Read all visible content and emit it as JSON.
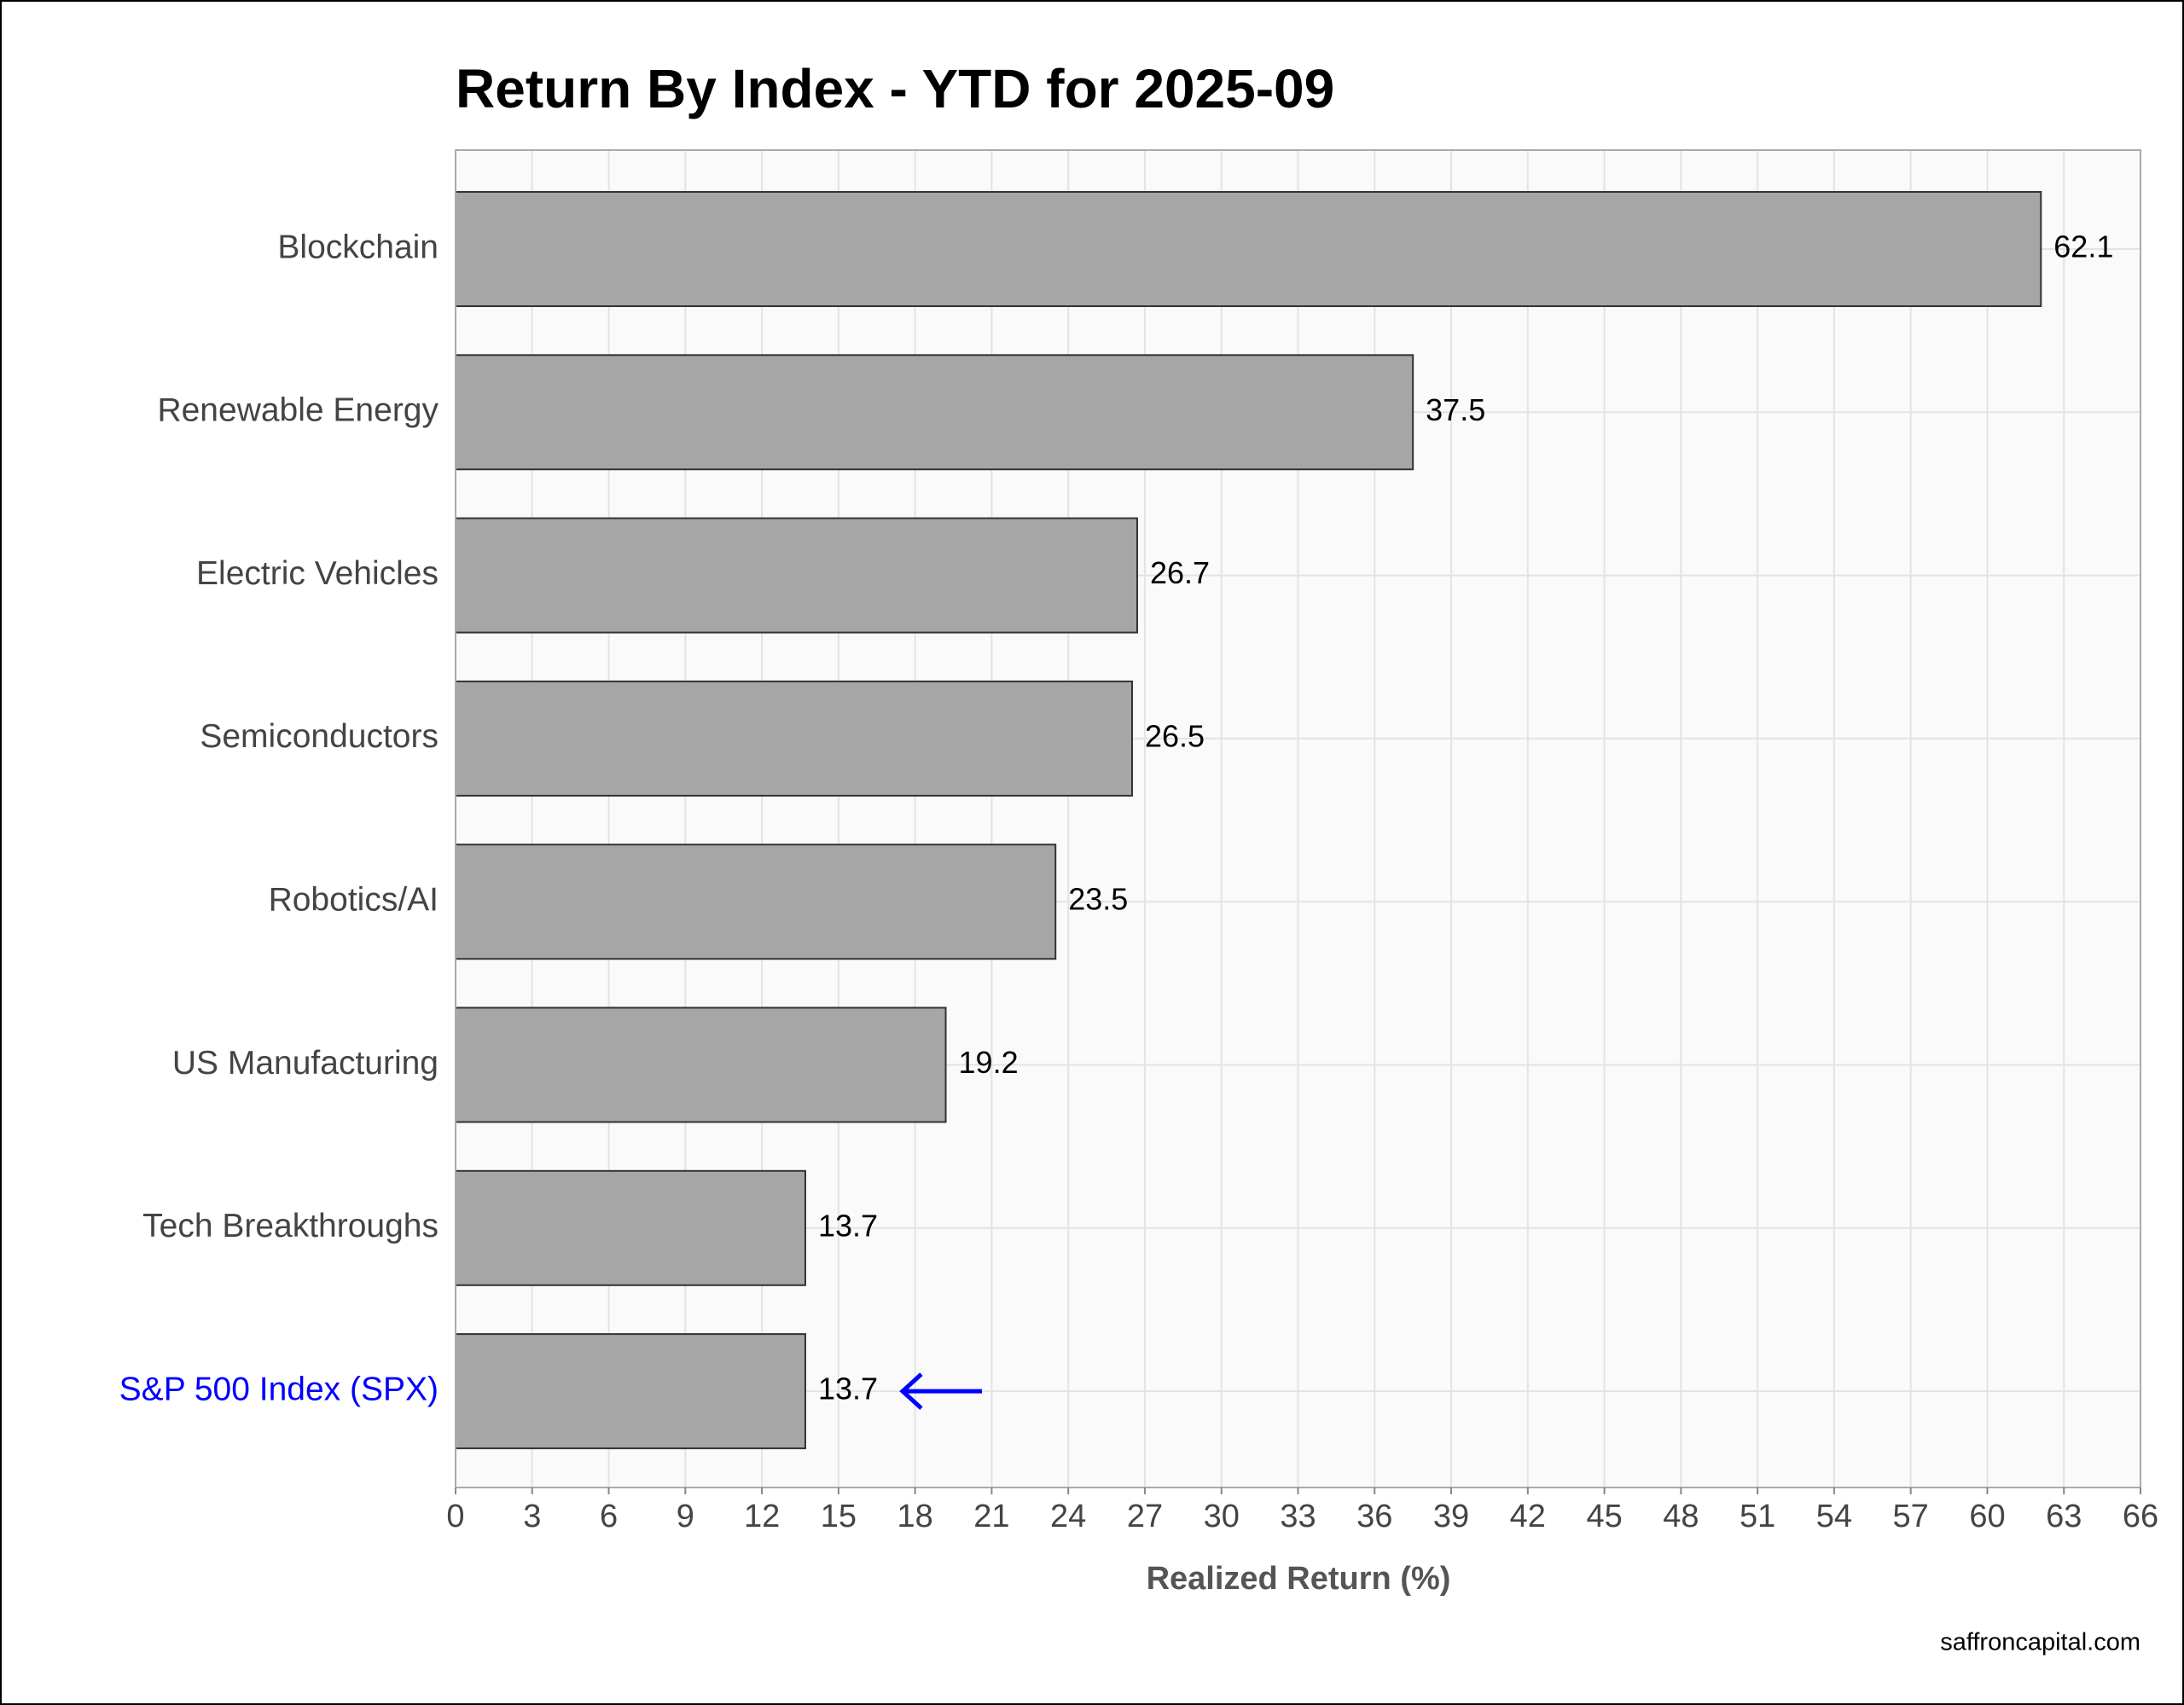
{
  "chart_data": {
    "type": "bar",
    "orientation": "horizontal",
    "title": "Return By Index - YTD for 2025-09",
    "x_label": "Realized Return (%)",
    "source": "saffroncapital.com",
    "categories": [
      "Blockchain",
      "Renewable Energy",
      "Electric Vehicles",
      "Semiconductors",
      "Robotics/AI",
      "US Manufacturing",
      "Tech Breakthroughs",
      "S&P 500 Index (SPX)"
    ],
    "values": [
      62.1,
      37.5,
      26.7,
      26.5,
      23.5,
      19.2,
      13.7,
      13.7
    ],
    "color": "#a6a6a6",
    "highlight_category": "S&P 500 Index (SPX)",
    "highlight_color": "#0000ff",
    "xlim": [
      0,
      66
    ],
    "xticks": [
      0,
      3,
      6,
      9,
      12,
      15,
      18,
      21,
      24,
      27,
      30,
      33,
      36,
      39,
      42,
      45,
      48,
      51,
      54,
      57,
      60,
      63,
      66
    ],
    "grid": true
  }
}
